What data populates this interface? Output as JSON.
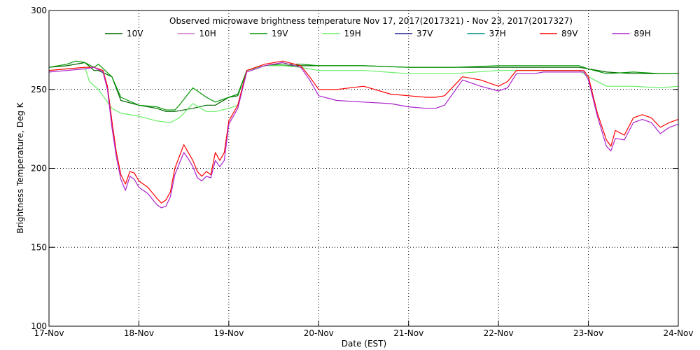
{
  "chart_data": {
    "type": "line",
    "title": "Observed microwave brightness temperature Nov 17, 2017(2017321) - Nov 23, 2017(2017327)",
    "xlabel": "Date (EST)",
    "ylabel": "Brightness Temperature, Deg K",
    "xlim": [
      0,
      7
    ],
    "ylim": [
      100,
      300
    ],
    "x_ticks": [
      {
        "v": 0,
        "label": "17-Nov"
      },
      {
        "v": 1,
        "label": "18-Nov"
      },
      {
        "v": 2,
        "label": "19-Nov"
      },
      {
        "v": 3,
        "label": "20-Nov"
      },
      {
        "v": 4,
        "label": "21-Nov"
      },
      {
        "v": 5,
        "label": "22-Nov"
      },
      {
        "v": 6,
        "label": "23-Nov"
      },
      {
        "v": 7,
        "label": "24-Nov"
      }
    ],
    "y_ticks": [
      100,
      150,
      200,
      250,
      300
    ],
    "grid": "dotted",
    "legend_position": "top",
    "series": [
      {
        "name": "10V",
        "color": "#006400",
        "x": [
          0,
          0.2,
          0.4,
          0.5,
          0.55,
          0.7,
          0.8,
          1.0,
          1.2,
          1.3,
          1.4,
          1.6,
          1.75,
          1.85,
          2.0,
          2.1,
          2.2,
          2.4,
          2.6,
          2.8,
          3.0,
          3.5,
          4.0,
          4.5,
          5.0,
          5.5,
          5.9,
          6.0,
          6.2,
          6.5,
          6.8,
          7.0
        ],
        "values": [
          264,
          265,
          267,
          262,
          262,
          258,
          243,
          240,
          238,
          236,
          236,
          238,
          240,
          240,
          245,
          246,
          262,
          265,
          265,
          265,
          265,
          265,
          264,
          264,
          264,
          264,
          264,
          263,
          261,
          260,
          260,
          260
        ]
      },
      {
        "name": "10H",
        "color": "#cc77cc",
        "x": [
          0,
          7
        ],
        "values": [
          null,
          null
        ]
      },
      {
        "name": "19V",
        "color": "#009900",
        "x": [
          0,
          0.2,
          0.3,
          0.4,
          0.5,
          0.55,
          0.7,
          0.8,
          1.0,
          1.2,
          1.3,
          1.4,
          1.45,
          1.6,
          1.75,
          1.85,
          2.0,
          2.1,
          2.2,
          2.4,
          2.6,
          2.8,
          3.0,
          3.5,
          4.0,
          4.5,
          5.0,
          5.5,
          5.9,
          6.0,
          6.2,
          6.5,
          6.8,
          7.0
        ],
        "values": [
          264,
          266,
          268,
          267,
          264,
          266,
          258,
          245,
          240,
          239,
          237,
          237,
          240,
          251,
          245,
          242,
          245,
          247,
          262,
          265,
          266,
          266,
          265,
          265,
          264,
          264,
          265,
          265,
          265,
          263,
          260,
          261,
          260,
          260
        ]
      },
      {
        "name": "19H",
        "color": "#66ee66",
        "x": [
          0,
          0.2,
          0.4,
          0.45,
          0.55,
          0.6,
          0.7,
          0.8,
          1.0,
          1.2,
          1.35,
          1.45,
          1.6,
          1.75,
          1.85,
          2.0,
          2.1,
          2.2,
          2.4,
          2.6,
          2.8,
          3.0,
          3.5,
          4.0,
          4.5,
          5.0,
          5.5,
          5.9,
          6.0,
          6.2,
          6.5,
          6.8,
          7.0
        ],
        "values": [
          262,
          263,
          264,
          255,
          250,
          246,
          238,
          235,
          233,
          230,
          229,
          232,
          241,
          236,
          236,
          238,
          240,
          262,
          265,
          265,
          264,
          262,
          262,
          260,
          260,
          262,
          262,
          262,
          258,
          252,
          252,
          251,
          252
        ]
      },
      {
        "name": "37V",
        "color": "#202090",
        "x": [
          0,
          7
        ],
        "values": [
          null,
          null
        ]
      },
      {
        "name": "37H",
        "color": "#008b8b",
        "x": [
          0,
          7
        ],
        "values": [
          null,
          null
        ]
      },
      {
        "name": "89V",
        "color": "#ff0000",
        "x": [
          0,
          0.2,
          0.4,
          0.5,
          0.6,
          0.65,
          0.7,
          0.75,
          0.8,
          0.85,
          0.9,
          0.95,
          1.0,
          1.1,
          1.2,
          1.25,
          1.3,
          1.35,
          1.4,
          1.5,
          1.55,
          1.6,
          1.65,
          1.7,
          1.75,
          1.8,
          1.85,
          1.9,
          1.95,
          2.0,
          2.1,
          2.2,
          2.4,
          2.6,
          2.8,
          2.9,
          3.0,
          3.2,
          3.5,
          3.8,
          4.0,
          4.2,
          4.3,
          4.4,
          4.5,
          4.6,
          4.8,
          5.0,
          5.1,
          5.2,
          5.4,
          5.5,
          5.6,
          5.8,
          5.95,
          6.0,
          6.1,
          6.2,
          6.25,
          6.3,
          6.4,
          6.5,
          6.6,
          6.7,
          6.8,
          6.9,
          7.0
        ],
        "values": [
          262,
          263,
          264,
          264,
          262,
          252,
          230,
          210,
          196,
          190,
          198,
          197,
          192,
          188,
          181,
          178,
          180,
          185,
          200,
          215,
          210,
          205,
          198,
          195,
          198,
          196,
          210,
          205,
          210,
          230,
          240,
          262,
          266,
          268,
          265,
          258,
          250,
          250,
          252,
          247,
          246,
          245,
          245,
          246,
          252,
          258,
          256,
          252,
          255,
          262,
          262,
          262,
          262,
          262,
          262,
          258,
          235,
          218,
          214,
          224,
          221,
          232,
          234,
          232,
          226,
          229,
          231
        ]
      },
      {
        "name": "89H",
        "color": "#aa22cc",
        "x": [
          0,
          0.2,
          0.4,
          0.5,
          0.6,
          0.65,
          0.7,
          0.75,
          0.8,
          0.85,
          0.9,
          0.95,
          1.0,
          1.1,
          1.2,
          1.25,
          1.3,
          1.35,
          1.4,
          1.5,
          1.55,
          1.6,
          1.65,
          1.7,
          1.75,
          1.8,
          1.85,
          1.9,
          1.95,
          2.0,
          2.1,
          2.2,
          2.4,
          2.6,
          2.8,
          2.9,
          3.0,
          3.2,
          3.5,
          3.8,
          4.0,
          4.2,
          4.3,
          4.4,
          4.5,
          4.6,
          4.8,
          5.0,
          5.1,
          5.2,
          5.4,
          5.5,
          5.6,
          5.8,
          5.95,
          6.0,
          6.1,
          6.2,
          6.25,
          6.3,
          6.4,
          6.5,
          6.6,
          6.7,
          6.8,
          6.9,
          7.0
        ],
        "values": [
          261,
          262,
          263,
          264,
          261,
          250,
          226,
          207,
          193,
          186,
          195,
          193,
          188,
          184,
          177,
          175,
          176,
          182,
          196,
          210,
          206,
          201,
          194,
          192,
          195,
          194,
          205,
          201,
          205,
          228,
          238,
          261,
          265,
          267,
          264,
          256,
          246,
          243,
          242,
          241,
          239,
          238,
          238,
          240,
          248,
          256,
          252,
          249,
          251,
          260,
          260,
          261,
          261,
          261,
          261,
          256,
          233,
          214,
          211,
          219,
          218,
          229,
          231,
          229,
          222,
          226,
          228
        ]
      }
    ]
  }
}
